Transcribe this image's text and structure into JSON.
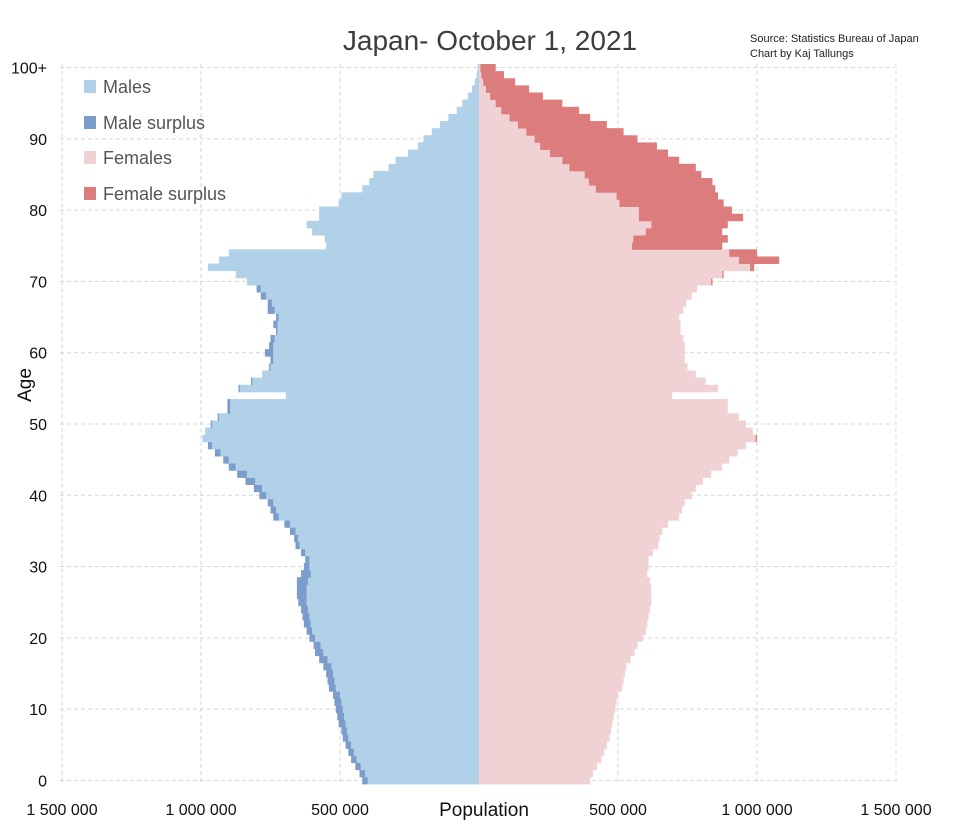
{
  "chart_data": {
    "type": "bar",
    "orientation": "horizontal-pyramid",
    "title": "Japan- October 1, 2021",
    "source_lines": [
      "Source: Statistics Bureau of Japan",
      "Chart by Kaj Tallungs"
    ],
    "xlabel": "Population",
    "ylabel": "Age",
    "xlim": [
      -1500000,
      1500000
    ],
    "ylim": [
      0,
      100
    ],
    "x_ticks": [
      {
        "value": -1500000,
        "label": "1 500 000"
      },
      {
        "value": -1000000,
        "label": "1 000 000"
      },
      {
        "value": -500000,
        "label": "500 000"
      },
      {
        "value": 500000,
        "label": "500 000"
      },
      {
        "value": 1000000,
        "label": "1 000 000"
      },
      {
        "value": 1500000,
        "label": "1 500 000"
      }
    ],
    "y_ticks": [
      {
        "value": 0,
        "label": "0"
      },
      {
        "value": 10,
        "label": "10"
      },
      {
        "value": 20,
        "label": "20"
      },
      {
        "value": 30,
        "label": "30"
      },
      {
        "value": 40,
        "label": "40"
      },
      {
        "value": 50,
        "label": "50"
      },
      {
        "value": 60,
        "label": "60"
      },
      {
        "value": 70,
        "label": "70"
      },
      {
        "value": 80,
        "label": "80"
      },
      {
        "value": 90,
        "label": "90"
      },
      {
        "value": 100,
        "label": "100+"
      }
    ],
    "grid": true,
    "legend_position": "top-left",
    "legend": [
      {
        "label": "Males",
        "color": "#b0d1e8"
      },
      {
        "label": "Male surplus",
        "color": "#7b9dcc"
      },
      {
        "label": "Females",
        "color": "#f1d2d4"
      },
      {
        "label": "Female surplus",
        "color": "#dd7c7d"
      }
    ],
    "ages": [
      0,
      1,
      2,
      3,
      4,
      5,
      6,
      7,
      8,
      9,
      10,
      11,
      12,
      13,
      14,
      15,
      16,
      17,
      18,
      19,
      20,
      21,
      22,
      23,
      24,
      25,
      26,
      27,
      28,
      29,
      30,
      31,
      32,
      33,
      34,
      35,
      36,
      37,
      38,
      39,
      40,
      41,
      42,
      43,
      44,
      45,
      46,
      47,
      48,
      49,
      50,
      51,
      52,
      53,
      54,
      55,
      56,
      57,
      58,
      59,
      60,
      61,
      62,
      63,
      64,
      65,
      66,
      67,
      68,
      69,
      70,
      71,
      72,
      73,
      74,
      75,
      76,
      77,
      78,
      79,
      80,
      81,
      82,
      83,
      84,
      85,
      86,
      87,
      88,
      89,
      90,
      91,
      92,
      93,
      94,
      95,
      96,
      97,
      98,
      99,
      100
    ],
    "series": [
      {
        "name": "Males",
        "values": [
          420000,
          430000,
          445000,
          460000,
          470000,
          480000,
          490000,
          495000,
          505000,
          510000,
          515000,
          520000,
          525000,
          540000,
          545000,
          550000,
          560000,
          575000,
          590000,
          595000,
          610000,
          620000,
          630000,
          635000,
          640000,
          650000,
          655000,
          655000,
          655000,
          640000,
          630000,
          625000,
          640000,
          660000,
          665000,
          680000,
          700000,
          740000,
          750000,
          760000,
          790000,
          810000,
          840000,
          870000,
          900000,
          920000,
          950000,
          975000,
          995000,
          985000,
          965000,
          940000,
          905000,
          905000,
          695000,
          865000,
          820000,
          780000,
          755000,
          750000,
          770000,
          755000,
          750000,
          730000,
          740000,
          730000,
          760000,
          760000,
          785000,
          800000,
          835000,
          875000,
          975000,
          935000,
          900000,
          550000,
          555000,
          600000,
          620000,
          575000,
          575000,
          505000,
          495000,
          420000,
          395000,
          380000,
          325000,
          300000,
          255000,
          220000,
          200000,
          170000,
          140000,
          110000,
          80000,
          60000,
          40000,
          25000,
          15000,
          8000,
          5000
        ]
      },
      {
        "name": "Females",
        "values": [
          400000,
          410000,
          425000,
          440000,
          450000,
          460000,
          470000,
          475000,
          480000,
          485000,
          490000,
          495000,
          500000,
          515000,
          520000,
          525000,
          530000,
          545000,
          560000,
          570000,
          590000,
          600000,
          605000,
          610000,
          615000,
          620000,
          620000,
          620000,
          615000,
          605000,
          610000,
          610000,
          625000,
          645000,
          650000,
          660000,
          680000,
          720000,
          730000,
          740000,
          765000,
          780000,
          805000,
          835000,
          875000,
          900000,
          930000,
          960000,
          1000000,
          985000,
          960000,
          935000,
          895000,
          895000,
          695000,
          860000,
          815000,
          780000,
          750000,
          740000,
          740000,
          740000,
          735000,
          725000,
          725000,
          720000,
          735000,
          745000,
          765000,
          785000,
          840000,
          880000,
          990000,
          1080000,
          1000000,
          875000,
          895000,
          875000,
          895000,
          950000,
          910000,
          880000,
          860000,
          850000,
          840000,
          800000,
          780000,
          720000,
          680000,
          640000,
          570000,
          520000,
          460000,
          400000,
          360000,
          300000,
          230000,
          180000,
          130000,
          90000,
          60000
        ]
      }
    ]
  }
}
